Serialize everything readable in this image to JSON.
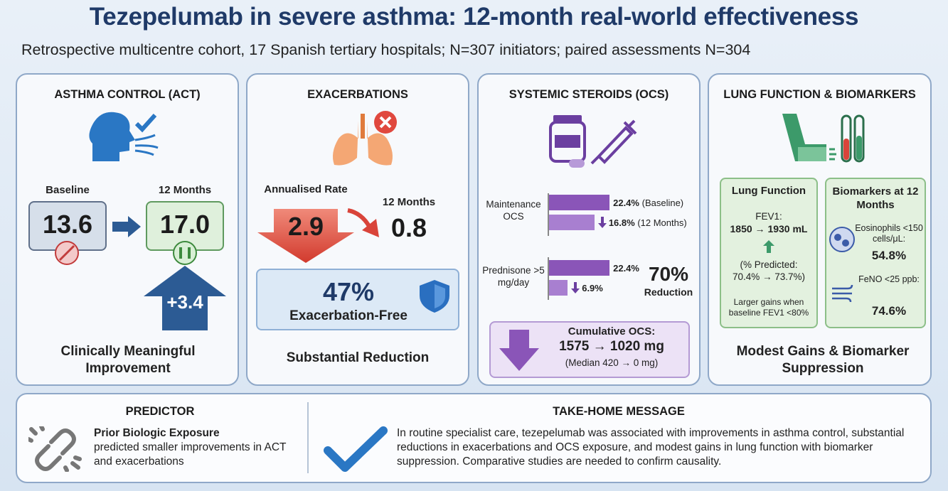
{
  "header": {
    "title": "Tezepelumab in severe asthma: 12-month real-world effectiveness",
    "subtitle": "Retrospective multicentre cohort, 17 Spanish tertiary hospitals; N=307 initiators; paired assessments N=304"
  },
  "act": {
    "title": "ASTHMA CONTROL (ACT)",
    "baseline_label": "Baseline",
    "baseline_value": "13.6",
    "followup_label": "12 Months",
    "followup_value": "17.0",
    "change": "+3.4",
    "footer": "Clinically Meaningful Improvement"
  },
  "exacerbations": {
    "title": "EXACERBATIONS",
    "rate_label": "Annualised Rate",
    "baseline_value": "2.9",
    "followup_label": "12 Months",
    "followup_value": "0.8",
    "free_value": "47%",
    "free_label": "Exacerbation-Free",
    "footer": "Substantial Reduction"
  },
  "ocs": {
    "title": "SYSTEMIC STEROIDS (OCS)",
    "maintenance": {
      "label": "Maintenance OCS",
      "baseline": {
        "value": 22.4,
        "label": "22.4%"
      },
      "baseline_note": "(Baseline)",
      "followup": {
        "value": 16.8,
        "label": "16.8%"
      },
      "followup_note": "(12 Months)"
    },
    "prednisone": {
      "label": "Prednisone >5 mg/day",
      "baseline": {
        "value": 22.4,
        "label": "22.4%"
      },
      "followup": {
        "value": 6.9,
        "label": "6.9%"
      }
    },
    "reduction_value": "70%",
    "reduction_label": "Reduction",
    "cumulative_label": "Cumulative OCS:",
    "cumulative_value": "1575 → 1020 mg",
    "cumulative_median": "(Median 420 → 0 mg)"
  },
  "lung": {
    "title": "LUNG FUNCTION & BIOMARKERS",
    "function_title": "Lung Function",
    "fev1_label": "FEV1:",
    "fev1_value": "1850 → 1930 mL",
    "predicted": "(% Predicted: 70.4% → 73.7%)",
    "note": "Larger gains when baseline FEV1 <80%",
    "biomarkers_title": "Biomarkers at 12 Months",
    "eos_label": "Eosinophils <150 cells/μL:",
    "eos_value": "54.8%",
    "feno_label": "FeNO <25 ppb:",
    "feno_value": "74.6%",
    "footer": "Modest Gains & Biomarker Suppression"
  },
  "bottom": {
    "predictor_title": "PREDICTOR",
    "predictor_bold": "Prior Biologic Exposure",
    "predictor_text": "predicted smaller improvements in ACT and exacerbations",
    "message_title": "TAKE-HOME MESSAGE",
    "message": "In routine specialist care, tezepelumab was associated with improvements in asthma control, substantial reductions in exacerbations and OCS exposure, and modest gains in lung function with biomarker suppression. Comparative studies are needed to confirm causality."
  }
}
